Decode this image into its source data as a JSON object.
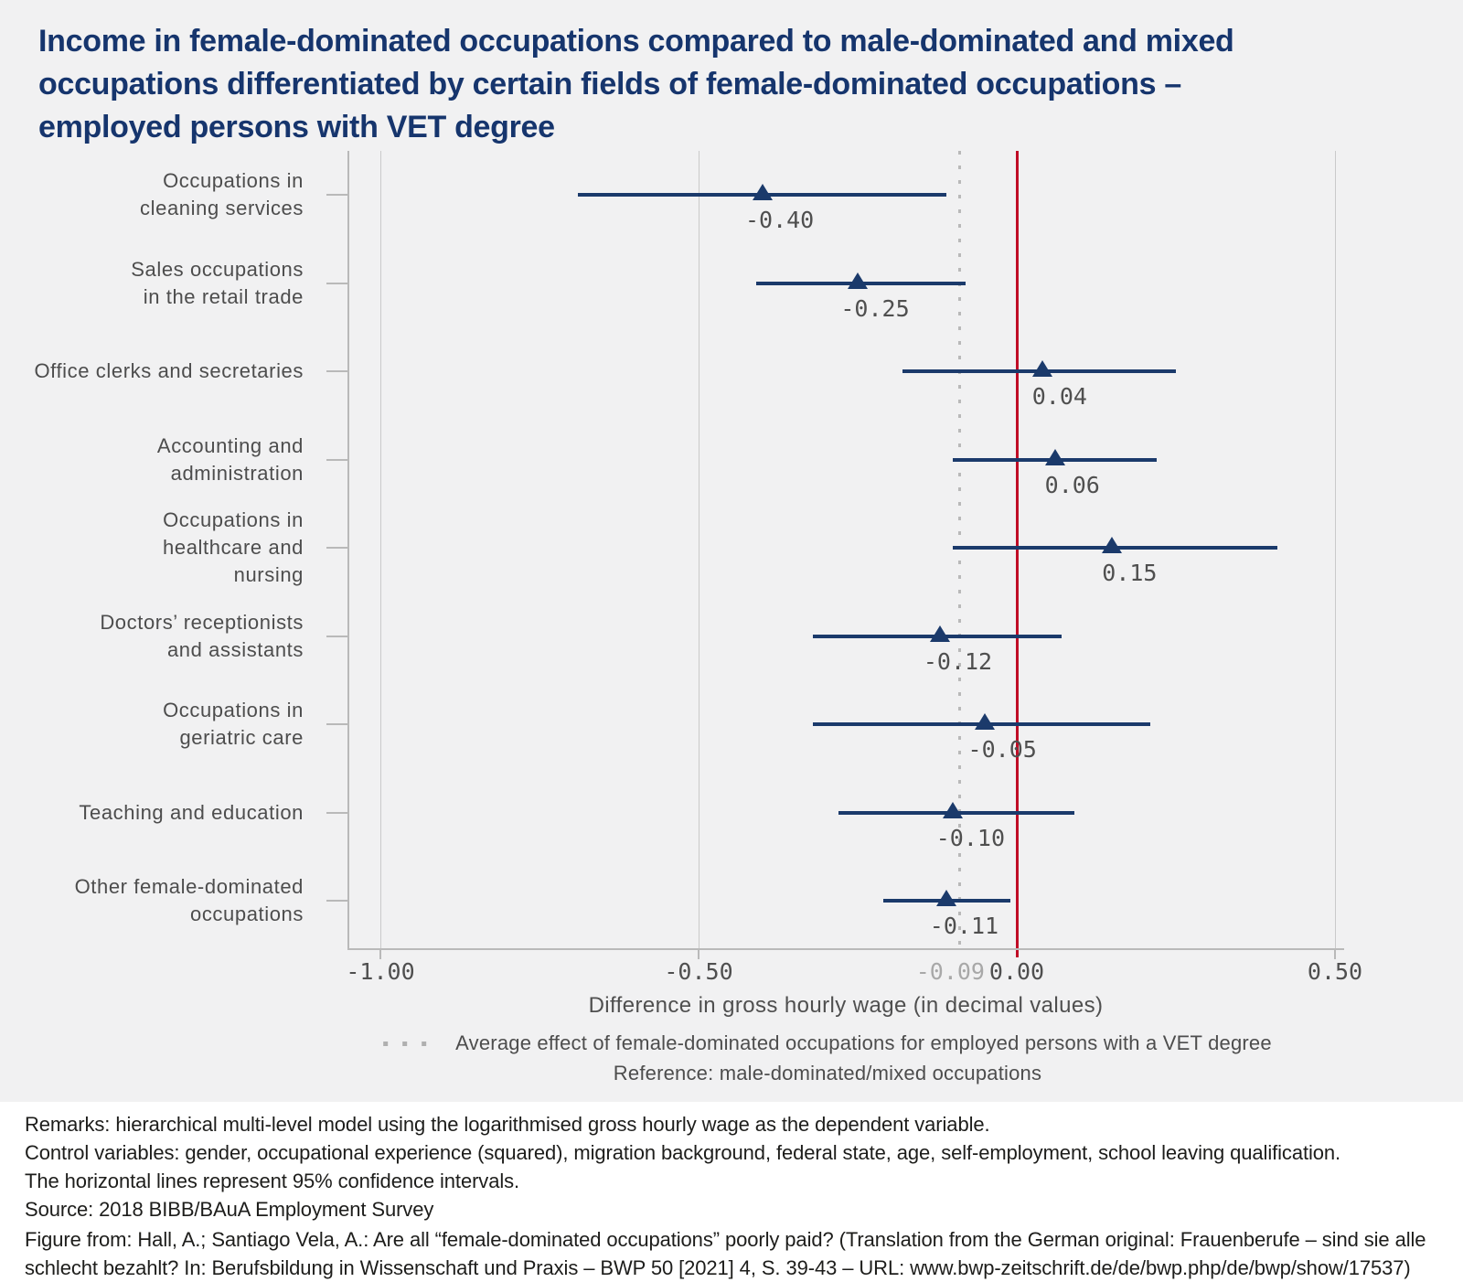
{
  "title": "Income in female-dominated occupations compared to male-dominated and mixed occupations differentiated by certain fields of female-dominated occupations – employed persons with VET degree",
  "title_lines": [
    "Income in female-dominated occupations compared to male-dominated and mixed",
    "occupations differentiated by certain fields of female-dominated occupations –",
    "employed persons with VET degree"
  ],
  "chart_data": {
    "type": "scatter",
    "subtype": "forest-plot-horizontal-ci",
    "marker": "triangle-up",
    "xlabel": "Difference in gross hourly wage (in decimal values)",
    "xlim": [
      -1.05,
      0.51
    ],
    "grid": "vertical-major-only",
    "grid_values": [
      -1.0,
      -0.5,
      0.5
    ],
    "x_ticks": [
      {
        "value": -1.0,
        "label": "-1.00",
        "muted": false
      },
      {
        "value": -0.5,
        "label": "-0.50",
        "muted": false
      },
      {
        "value": -0.09,
        "label": "-0.09",
        "muted": true
      },
      {
        "value": 0.0,
        "label": "0.00",
        "muted": false
      },
      {
        "value": 0.5,
        "label": "0.50",
        "muted": false
      }
    ],
    "reference_line_value": 0.0,
    "average_effect_line_value": -0.09,
    "categories": [
      "Occupations in cleaning services",
      "Sales occupations in the retail trade",
      "Office clerks and secretaries",
      "Accounting and administration",
      "Occupations in healthcare and nursing",
      "Doctors’ receptionists and assistants",
      "Occupations in geriatric care",
      "Teaching and education",
      "Other female-dominated occupations"
    ],
    "points": [
      {
        "category_lines": [
          "Occupations in",
          "cleaning services"
        ],
        "estimate": -0.4,
        "label": "-0.40",
        "ci_low": -0.69,
        "ci_high": -0.11
      },
      {
        "category_lines": [
          "Sales occupations",
          "in the retail trade"
        ],
        "estimate": -0.25,
        "label": "-0.25",
        "ci_low": -0.41,
        "ci_high": -0.08
      },
      {
        "category_lines": [
          "Office clerks and secretaries"
        ],
        "estimate": 0.04,
        "label": "0.04",
        "ci_low": -0.18,
        "ci_high": 0.25
      },
      {
        "category_lines": [
          "Accounting and",
          "administration"
        ],
        "estimate": 0.06,
        "label": "0.06",
        "ci_low": -0.1,
        "ci_high": 0.22
      },
      {
        "category_lines": [
          "Occupations in",
          "healthcare and",
          "nursing"
        ],
        "estimate": 0.15,
        "label": "0.15",
        "ci_low": -0.1,
        "ci_high": 0.41
      },
      {
        "category_lines": [
          "Doctors’ receptionists",
          "and assistants"
        ],
        "estimate": -0.12,
        "label": "-0.12",
        "ci_low": -0.32,
        "ci_high": 0.07
      },
      {
        "category_lines": [
          "Occupations in",
          "geriatric care"
        ],
        "estimate": -0.05,
        "label": "-0.05",
        "ci_low": -0.32,
        "ci_high": 0.21
      },
      {
        "category_lines": [
          "Teaching and education"
        ],
        "estimate": -0.1,
        "label": "-0.10",
        "ci_low": -0.28,
        "ci_high": 0.09
      },
      {
        "category_lines": [
          "Other female-dominated",
          "occupations"
        ],
        "estimate": -0.11,
        "label": "-0.11",
        "ci_low": -0.21,
        "ci_high": -0.01
      }
    ]
  },
  "legend": {
    "average_effect": "Average effect of female-dominated occupations for employed persons with a VET degree",
    "reference": "Reference: male-dominated/mixed occupations"
  },
  "footnotes": {
    "lines": [
      "Remarks: hierarchical multi-level model using the logarithmised gross hourly wage as the dependent variable.",
      "Control variables: gender, occupational experience (squared), migration background, federal state, age, self-employment, school leaving qualification.",
      "The horizontal lines represent 95% confidence intervals.",
      "Source: 2018 BIBB/BAuA Employment Survey"
    ],
    "figure_from": "Figure from: Hall, A.; Santiago Vela, A.: Are all “female-dominated occupations” poorly paid? (Translation from the German original: Frauenberufe – sind sie alle schlecht bezahlt? In: Berufsbildung in Wissenschaft und Praxis – BWP 50 [2021] 4, S. 39-43 – URL: www.bwp-zeitschrift.de/de/bwp.php/de/bwp/show/17537)"
  },
  "colors": {
    "background_panel": "#f1f1f2",
    "navy": "#1b3a6b",
    "title_navy": "#16356d",
    "reference_red": "#c00d26",
    "grid_gray": "#cacaca",
    "axis_gray": "#b9b9b9",
    "label_gray": "#4d4d4d",
    "value_gray": "#4f4f4f",
    "muted_tick_gray": "#a8a8a8",
    "footnote_black": "#1d1d1b"
  }
}
